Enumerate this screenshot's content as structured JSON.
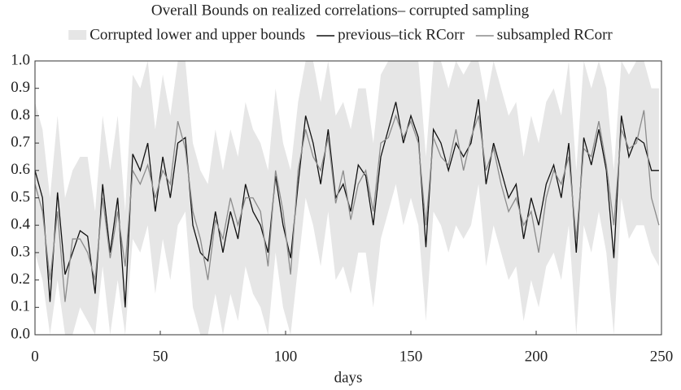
{
  "chart_data": {
    "type": "line",
    "title": "Overall Bounds on realized correlations– corrupted sampling",
    "xlabel": "days",
    "xlim": [
      0,
      250
    ],
    "xticks": [
      0,
      50,
      100,
      150,
      200,
      250
    ],
    "ylim": [
      0,
      1
    ],
    "yticks": [
      {
        "value": 0,
        "label": "0.0"
      },
      0.1,
      0.2,
      0.3,
      0.4,
      0.5,
      0.6,
      0.7,
      0.8,
      0.9,
      {
        "value": 1,
        "label": "1.0"
      }
    ],
    "x": [
      0,
      3,
      6,
      9,
      12,
      15,
      18,
      21,
      24,
      27,
      30,
      33,
      36,
      39,
      42,
      45,
      48,
      51,
      54,
      57,
      60,
      63,
      66,
      69,
      72,
      75,
      78,
      81,
      84,
      87,
      90,
      93,
      96,
      99,
      102,
      105,
      108,
      111,
      114,
      117,
      120,
      123,
      126,
      129,
      132,
      135,
      138,
      141,
      144,
      147,
      150,
      153,
      156,
      159,
      162,
      165,
      168,
      171,
      174,
      177,
      180,
      183,
      186,
      189,
      192,
      195,
      198,
      201,
      204,
      207,
      210,
      213,
      216,
      219,
      222,
      225,
      228,
      231,
      234,
      237,
      240,
      243,
      246,
      249
    ],
    "series": [
      {
        "name": "Corrupted lower and upper bounds",
        "color": "#e6e6e6",
        "lower": [
          0.3,
          0.2,
          0,
          0.2,
          0,
          0,
          0.1,
          0.05,
          0,
          0.25,
          0,
          0.2,
          0,
          0.35,
          0.3,
          0.4,
          0.15,
          0.35,
          0.2,
          0.4,
          0.45,
          0.1,
          0,
          0,
          0.15,
          0,
          0.15,
          0.05,
          0.25,
          0.15,
          0.1,
          0,
          0.3,
          0.1,
          0,
          0.25,
          0.5,
          0.4,
          0.25,
          0.45,
          0.2,
          0.25,
          0.15,
          0.3,
          0.3,
          0.1,
          0.35,
          0.45,
          0.55,
          0.4,
          0.5,
          0.4,
          0.05,
          0.45,
          0.4,
          0.3,
          0.4,
          0.35,
          0.4,
          0.55,
          0.25,
          0.4,
          0.3,
          0.2,
          0.25,
          0.05,
          0.2,
          0.1,
          0.25,
          0.3,
          0.2,
          0.4,
          0,
          0.4,
          0.3,
          0.45,
          0.3,
          0,
          0.5,
          0.35,
          0.4,
          0.4,
          0.3,
          0.25
        ],
        "upper": [
          0.85,
          0.75,
          0.5,
          0.8,
          0.5,
          0.6,
          0.65,
          0.65,
          0.45,
          0.8,
          0.6,
          0.8,
          0.45,
          0.95,
          0.9,
          1,
          0.75,
          0.95,
          0.8,
          1,
          1,
          0.7,
          0.6,
          0.55,
          0.75,
          0.6,
          0.75,
          0.65,
          0.85,
          0.75,
          0.7,
          0.6,
          0.9,
          0.7,
          0.6,
          0.85,
          1,
          1,
          0.85,
          1,
          0.8,
          0.85,
          0.75,
          0.9,
          0.9,
          0.7,
          0.95,
          1,
          1,
          1,
          1,
          1,
          0.65,
          1,
          1,
          0.9,
          1,
          0.95,
          1,
          1,
          0.85,
          1,
          0.9,
          0.8,
          0.85,
          0.65,
          0.8,
          0.7,
          0.85,
          0.9,
          0.8,
          1,
          0.6,
          1,
          0.9,
          1,
          0.9,
          0.6,
          1,
          0.95,
          1,
          1,
          0.9,
          0.9
        ]
      },
      {
        "name": "previous–tick RCorr",
        "color": "#111111",
        "values": [
          0.6,
          0.5,
          0.12,
          0.52,
          0.22,
          0.3,
          0.38,
          0.36,
          0.15,
          0.55,
          0.3,
          0.5,
          0.1,
          0.66,
          0.6,
          0.7,
          0.45,
          0.65,
          0.5,
          0.7,
          0.72,
          0.4,
          0.3,
          0.27,
          0.45,
          0.3,
          0.45,
          0.35,
          0.55,
          0.45,
          0.4,
          0.3,
          0.58,
          0.4,
          0.28,
          0.55,
          0.8,
          0.7,
          0.55,
          0.75,
          0.5,
          0.55,
          0.45,
          0.62,
          0.58,
          0.4,
          0.65,
          0.75,
          0.85,
          0.7,
          0.8,
          0.72,
          0.32,
          0.75,
          0.7,
          0.6,
          0.7,
          0.65,
          0.7,
          0.86,
          0.55,
          0.7,
          0.6,
          0.5,
          0.55,
          0.35,
          0.5,
          0.4,
          0.55,
          0.62,
          0.5,
          0.7,
          0.3,
          0.72,
          0.62,
          0.75,
          0.6,
          0.28,
          0.8,
          0.65,
          0.72,
          0.7,
          0.6,
          0.6
        ]
      },
      {
        "name": "subsampled RCorr",
        "color": "#8c8c8c",
        "values": [
          0.55,
          0.45,
          0.2,
          0.45,
          0.12,
          0.35,
          0.35,
          0.3,
          0.2,
          0.5,
          0.28,
          0.45,
          0.25,
          0.6,
          0.55,
          0.62,
          0.5,
          0.6,
          0.55,
          0.78,
          0.68,
          0.45,
          0.35,
          0.2,
          0.42,
          0.35,
          0.5,
          0.4,
          0.5,
          0.5,
          0.45,
          0.25,
          0.6,
          0.45,
          0.22,
          0.6,
          0.75,
          0.65,
          0.6,
          0.72,
          0.48,
          0.6,
          0.42,
          0.55,
          0.6,
          0.45,
          0.7,
          0.72,
          0.8,
          0.72,
          0.78,
          0.7,
          0.4,
          0.72,
          0.65,
          0.62,
          0.75,
          0.6,
          0.72,
          0.8,
          0.6,
          0.68,
          0.55,
          0.45,
          0.5,
          0.4,
          0.45,
          0.3,
          0.5,
          0.6,
          0.55,
          0.65,
          0.35,
          0.68,
          0.65,
          0.78,
          0.62,
          0.4,
          0.75,
          0.68,
          0.7,
          0.82,
          0.5,
          0.4
        ]
      }
    ]
  }
}
